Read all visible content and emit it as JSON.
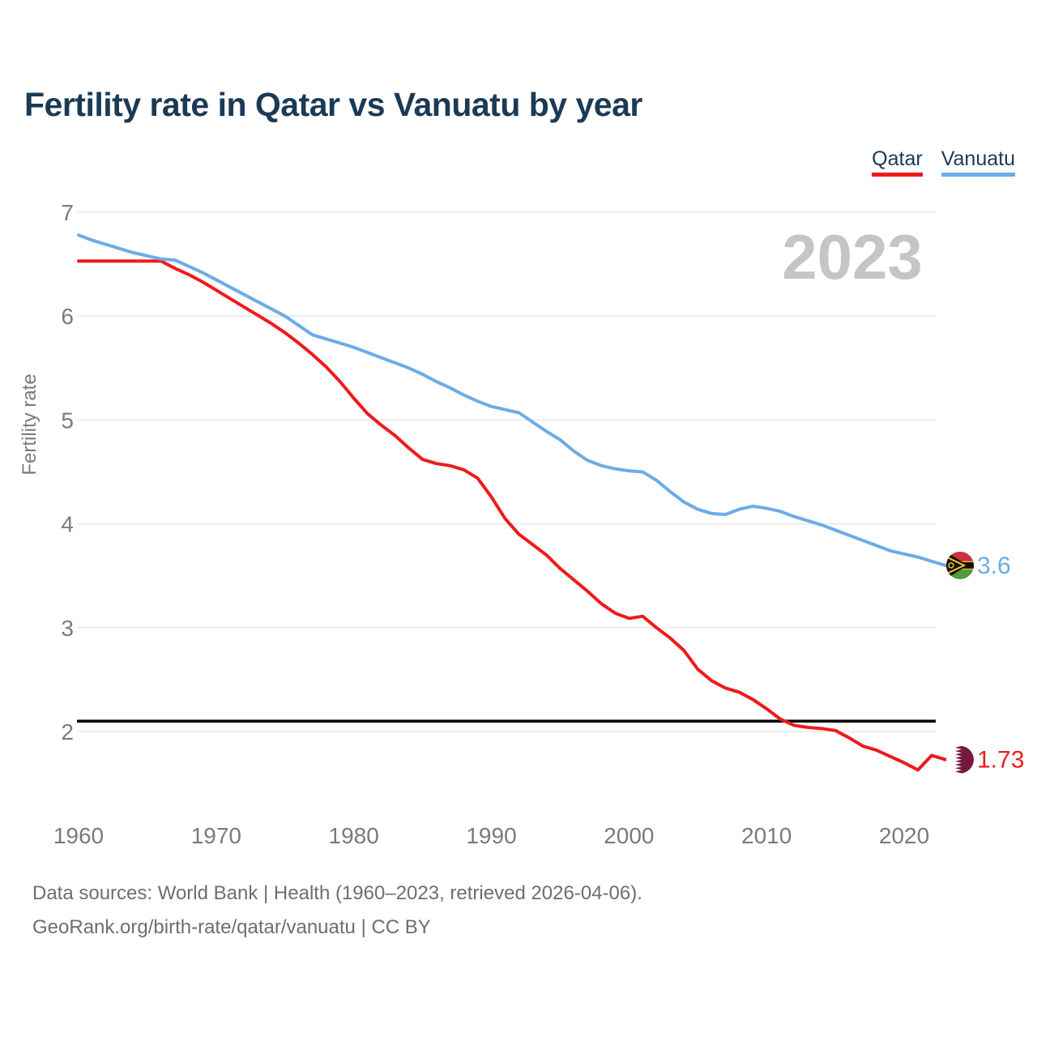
{
  "page": {
    "title": "Fertility rate in Qatar vs Vanuatu by year",
    "watermark_year": "2023",
    "footer_line1": "Data sources: World Bank | Health (1960–2023, retrieved 2026-04-06).",
    "footer_line2": "GeoRank.org/birth-rate/qatar/vanuatu | CC BY"
  },
  "legend": [
    {
      "label": "Qatar",
      "color": "#ee1b1b"
    },
    {
      "label": "Vanuatu",
      "color": "#6dace6"
    }
  ],
  "chart_data": {
    "type": "line",
    "title": "Fertility rate in Qatar vs Vanuatu by year",
    "xlabel": "",
    "ylabel": "Fertility rate",
    "xlim": [
      1960,
      2023
    ],
    "ylim": [
      1.45,
      7.05
    ],
    "x_ticks": [
      1960,
      1970,
      1980,
      1990,
      2000,
      2010,
      2020
    ],
    "y_ticks": [
      7,
      6,
      5,
      4,
      3,
      2
    ],
    "grid": "horizontal",
    "legend_position": "top-right",
    "reference_line": {
      "value": 2.1,
      "color": "#000000"
    },
    "years": [
      1960,
      1961,
      1962,
      1963,
      1964,
      1965,
      1966,
      1967,
      1968,
      1969,
      1970,
      1971,
      1972,
      1973,
      1974,
      1975,
      1976,
      1977,
      1978,
      1979,
      1980,
      1981,
      1982,
      1983,
      1984,
      1985,
      1986,
      1987,
      1988,
      1989,
      1990,
      1991,
      1992,
      1993,
      1994,
      1995,
      1996,
      1997,
      1998,
      1999,
      2000,
      2001,
      2002,
      2003,
      2004,
      2005,
      2006,
      2007,
      2008,
      2009,
      2010,
      2011,
      2012,
      2013,
      2014,
      2015,
      2016,
      2017,
      2018,
      2019,
      2020,
      2021,
      2022,
      2023
    ],
    "series": [
      {
        "name": "Qatar",
        "color": "#ee1b1b",
        "end_label": "1.73",
        "end_value": 1.73,
        "flag_icon": "qatar-flag",
        "flag_colors": {
          "maroon": "#751a3d",
          "white": "#ffffff"
        },
        "values": [
          6.53,
          6.53,
          6.53,
          6.53,
          6.53,
          6.53,
          6.53,
          6.46,
          6.4,
          6.33,
          6.25,
          6.17,
          6.09,
          6.01,
          5.93,
          5.84,
          5.74,
          5.63,
          5.51,
          5.37,
          5.21,
          5.06,
          4.95,
          4.85,
          4.73,
          4.62,
          4.58,
          4.56,
          4.52,
          4.44,
          4.26,
          4.05,
          3.9,
          3.8,
          3.7,
          3.57,
          3.46,
          3.35,
          3.23,
          3.14,
          3.09,
          3.11,
          3.0,
          2.9,
          2.78,
          2.6,
          2.49,
          2.42,
          2.38,
          2.31,
          2.22,
          2.12,
          2.06,
          2.04,
          2.03,
          2.01,
          1.94,
          1.86,
          1.82,
          1.76,
          1.7,
          1.63,
          1.77,
          1.73
        ]
      },
      {
        "name": "Vanuatu",
        "color": "#6dace6",
        "end_label": "3.6",
        "end_value": 3.6,
        "flag_icon": "vanuatu-flag",
        "flag_colors": {
          "red": "#c9343f",
          "green": "#549a3e",
          "black": "#15110d",
          "yellow": "#f2c42c"
        },
        "values": [
          6.78,
          6.73,
          6.69,
          6.65,
          6.61,
          6.58,
          6.55,
          6.54,
          6.48,
          6.42,
          6.35,
          6.28,
          6.21,
          6.14,
          6.07,
          6.0,
          5.91,
          5.82,
          5.78,
          5.74,
          5.7,
          5.65,
          5.6,
          5.55,
          5.5,
          5.44,
          5.37,
          5.31,
          5.24,
          5.18,
          5.13,
          5.1,
          5.07,
          4.98,
          4.89,
          4.81,
          4.7,
          4.61,
          4.56,
          4.53,
          4.51,
          4.5,
          4.42,
          4.31,
          4.21,
          4.14,
          4.1,
          4.09,
          4.14,
          4.17,
          4.15,
          4.12,
          4.07,
          4.03,
          3.99,
          3.94,
          3.89,
          3.84,
          3.79,
          3.74,
          3.71,
          3.68,
          3.64,
          3.6
        ]
      }
    ]
  }
}
